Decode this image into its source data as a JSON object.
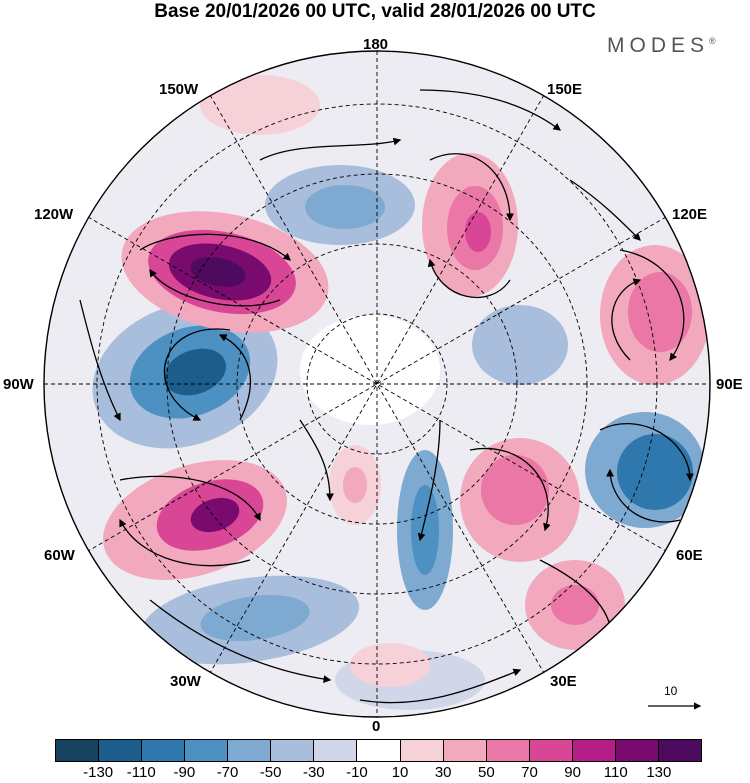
{
  "title": "Base 20/01/2026 00 UTC, valid 28/01/2026 00 UTC",
  "brand": "MODES",
  "brand_mark": "®",
  "longitude_labels": {
    "top": "180",
    "bottom": "0",
    "left": "90W",
    "right": "90E",
    "upper_left": "150W",
    "upper_right": "150E",
    "mid_left_upper": "120W",
    "mid_right_upper": "120E",
    "mid_left_lower": "60W",
    "mid_right_lower": "60E",
    "lower_left": "30W",
    "lower_right": "30E"
  },
  "vector_reference": "10",
  "colorbar": {
    "tick_labels": [
      "-130",
      "-110",
      "-90",
      "-70",
      "-50",
      "-30",
      "-10",
      "10",
      "30",
      "50",
      "70",
      "90",
      "110",
      "130"
    ],
    "colors": [
      "#16415f",
      "#1c5d8c",
      "#2f78ad",
      "#4d91c2",
      "#7ea9d1",
      "#a9bedc",
      "#d2d6e9",
      "#ffffff",
      "#f7d1d8",
      "#f2a8bd",
      "#ea77a6",
      "#d94696",
      "#b31f86",
      "#7a0b6e",
      "#4d0a5e"
    ]
  }
}
